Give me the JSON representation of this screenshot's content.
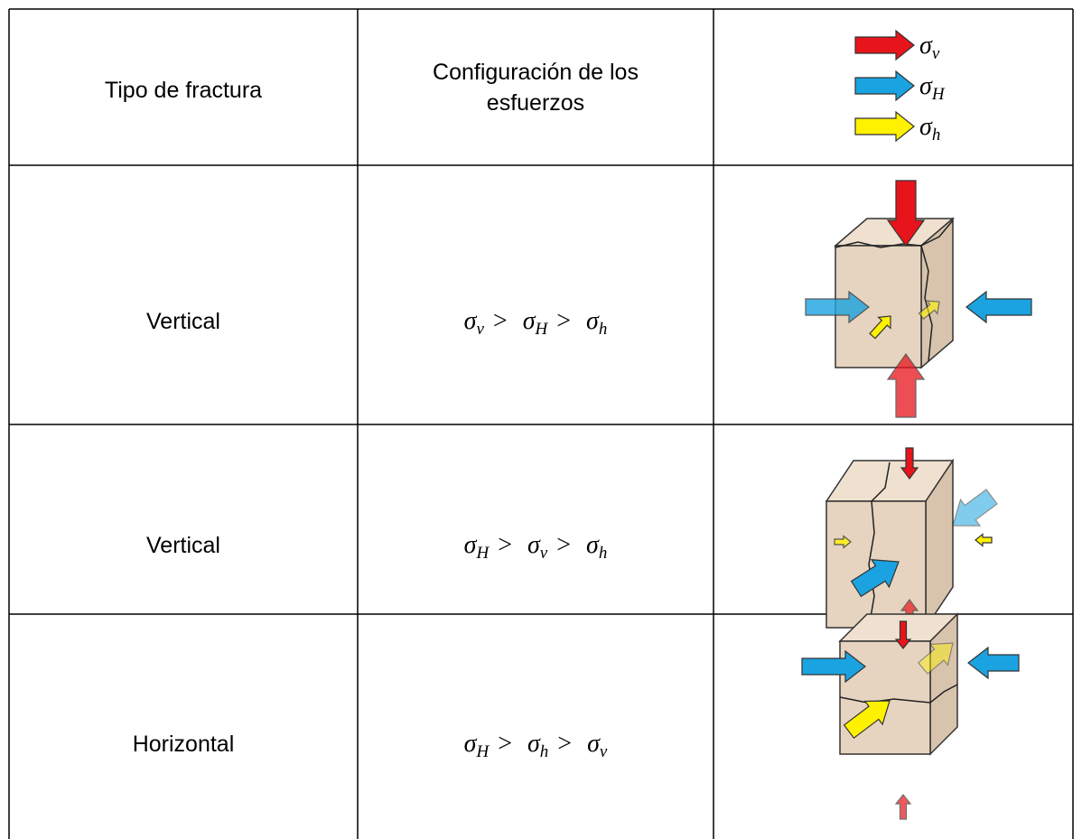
{
  "table": {
    "header": {
      "col1": "Tipo de fractura",
      "col2": [
        "Configuración de los",
        "esfuerzos"
      ],
      "legend": [
        {
          "symbol": "σ",
          "sub": "v",
          "color": "#e8141b"
        },
        {
          "symbol": "σ",
          "sub": "H",
          "color": "#1aa3e0"
        },
        {
          "symbol": "σ",
          "sub": "h",
          "color": "#fff200"
        }
      ]
    },
    "rows": [
      {
        "type": "Vertical",
        "config": [
          {
            "symbol": "σ",
            "sub": "v"
          },
          ">",
          {
            "symbol": "σ",
            "sub": "H"
          },
          ">",
          {
            "symbol": "σ",
            "sub": "h"
          }
        ]
      },
      {
        "type": "Vertical",
        "config": [
          {
            "symbol": "σ",
            "sub": "H"
          },
          ">",
          {
            "symbol": "σ",
            "sub": "v"
          },
          ">",
          {
            "symbol": "σ",
            "sub": "h"
          }
        ]
      },
      {
        "type": "Horizontal",
        "config": [
          {
            "symbol": "σ",
            "sub": "H"
          },
          ">",
          {
            "symbol": "σ",
            "sub": "h"
          },
          ">",
          {
            "symbol": "σ",
            "sub": "v"
          }
        ]
      }
    ]
  }
}
